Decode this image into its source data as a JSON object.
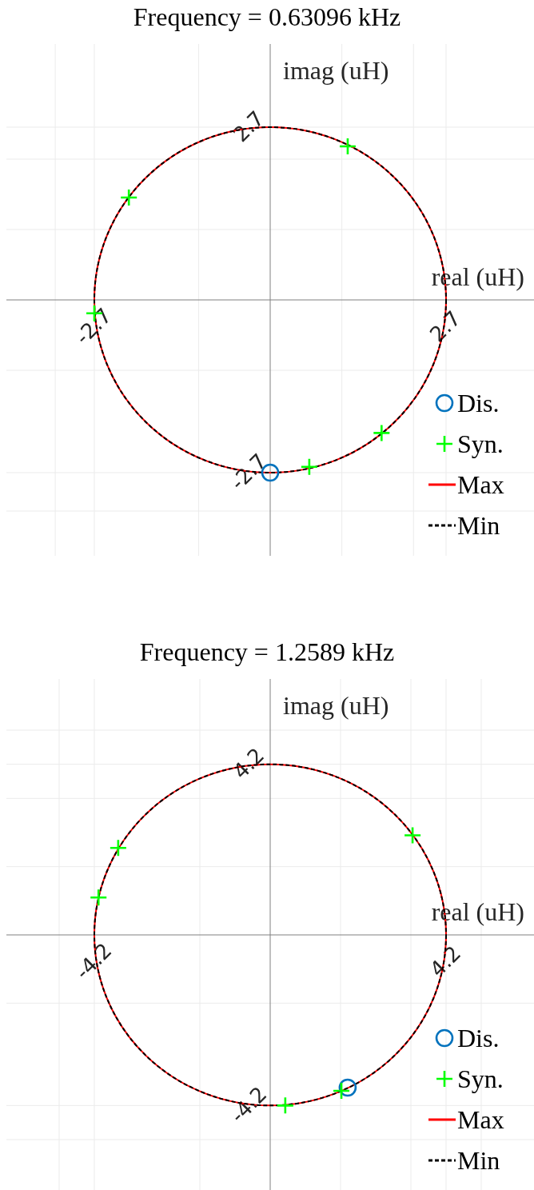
{
  "chart_data": [
    {
      "type": "scatter",
      "title": "Frequency = 0.63096 kHz",
      "xlabel": "real (uH)",
      "ylabel": "imag (uH)",
      "xlim": [
        -4.05,
        4.05
      ],
      "ylim": [
        -4,
        4
      ],
      "xticks": [
        {
          "value": -3.3,
          "label": null
        },
        {
          "value": -2.7,
          "label": "-2.7"
        },
        {
          "value": -1.1,
          "label": null
        },
        {
          "value": 1.1,
          "label": null
        },
        {
          "value": 2.2,
          "label": null
        },
        {
          "value": 2.7,
          "label": "2.7"
        }
      ],
      "yticks": [
        {
          "value": -3.3,
          "label": null
        },
        {
          "value": -2.7,
          "label": "-2.7"
        },
        {
          "value": -1.1,
          "label": null
        },
        {
          "value": 1.1,
          "label": null
        },
        {
          "value": 2.2,
          "label": null
        },
        {
          "value": 2.7,
          "label": "2.7"
        }
      ],
      "grid": true,
      "legend": "bottom right",
      "annotations": [
        "Max",
        "Min"
      ],
      "series": [
        {
          "name": "Dis.",
          "color": "#0072bd",
          "marker": "circle",
          "x": [
            0
          ],
          "values": [
            -2.7
          ]
        },
        {
          "name": "Syn.",
          "color": "#00ff00",
          "marker": "cross",
          "x": [
            1.19,
            -2.17,
            -2.7,
            1.71,
            0.6
          ],
          "values": [
            2.4,
            1.6,
            -0.21,
            -2.08,
            -2.61
          ]
        }
      ]
    },
    {
      "type": "scatter",
      "title": "Frequency = 1.2589 kHz",
      "xlabel": "real (uH)",
      "ylabel": "imag (uH)",
      "xlim": [
        -6.3,
        6.3
      ],
      "ylim": [
        -6.3,
        6.3
      ],
      "xticks": [
        {
          "value": -5.04,
          "label": null
        },
        {
          "value": -4.2,
          "label": "-4.2"
        },
        {
          "value": -1.68,
          "label": null
        },
        {
          "value": 1.68,
          "label": null
        },
        {
          "value": 3.36,
          "label": null
        },
        {
          "value": 4.2,
          "label": "4.2"
        },
        {
          "value": 5.04,
          "label": null
        }
      ],
      "yticks": [
        {
          "value": -5.04,
          "label": null
        },
        {
          "value": -4.2,
          "label": "-4.2"
        },
        {
          "value": -1.68,
          "label": null
        },
        {
          "value": 1.68,
          "label": null
        },
        {
          "value": 3.36,
          "label": null
        },
        {
          "value": 4.2,
          "label": "4.2"
        },
        {
          "value": 5.04,
          "label": null
        }
      ],
      "grid": true,
      "legend": "bottom right",
      "annotations": [
        "Max",
        "Min"
      ],
      "series": [
        {
          "name": "Dis.",
          "color": "#0072bd",
          "marker": "circle",
          "x": [
            1.85
          ],
          "values": [
            -3.76
          ]
        },
        {
          "name": "Syn.",
          "color": "#00ff00",
          "marker": "cross",
          "x": [
            3.4,
            -3.63,
            -4.1,
            1.7,
            0.36
          ],
          "values": [
            2.45,
            2.14,
            0.92,
            -3.84,
            -4.2
          ]
        }
      ]
    }
  ]
}
